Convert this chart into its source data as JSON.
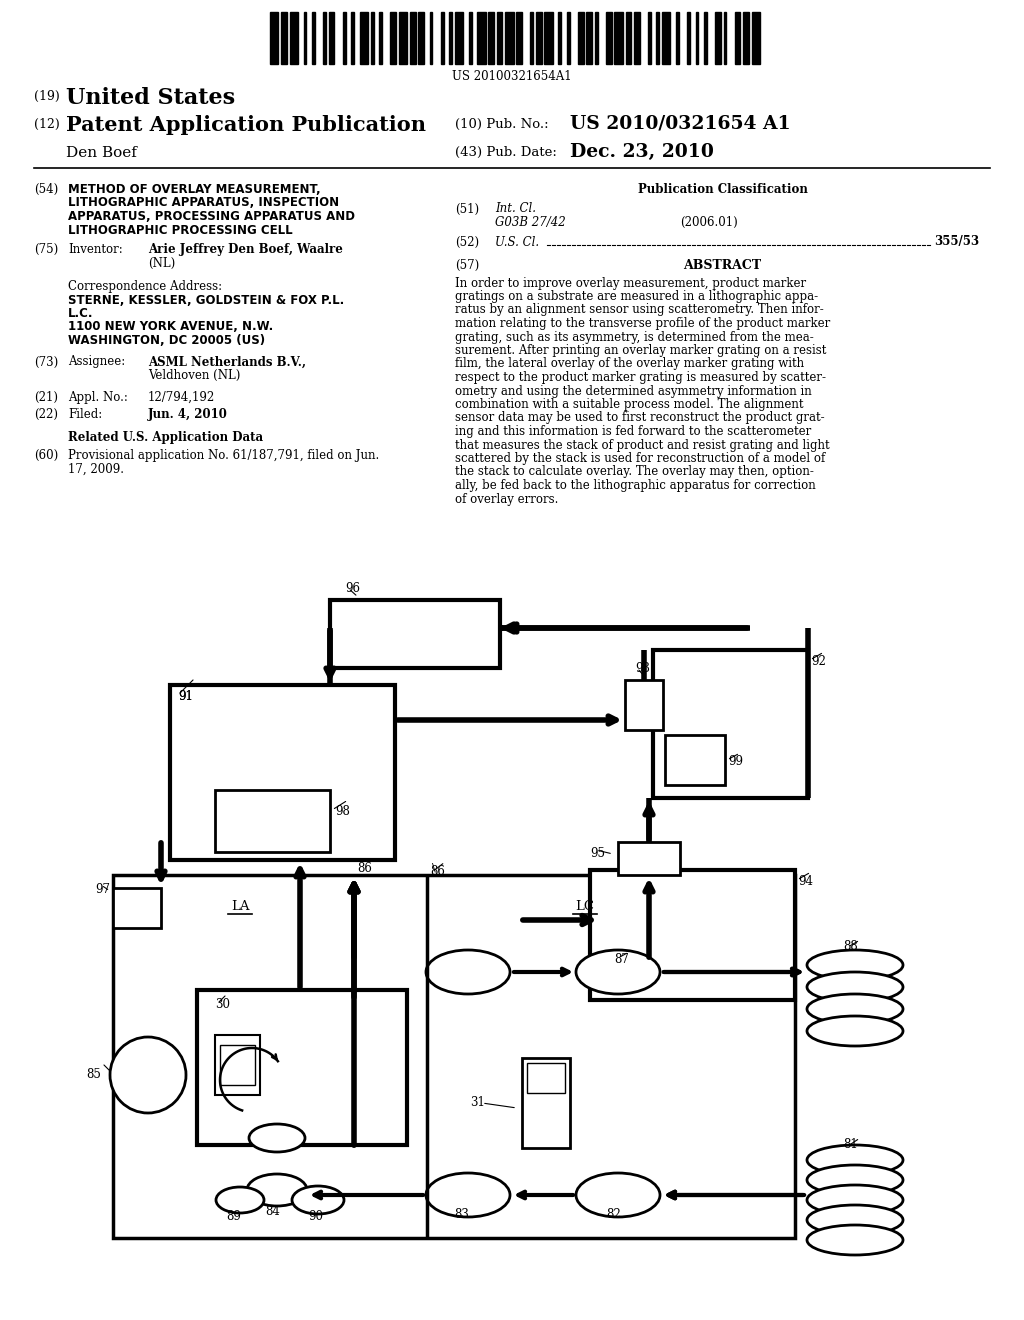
{
  "bg_color": "#ffffff",
  "barcode_text": "US 20100321654A1",
  "header_country_num": "(19)",
  "header_country": "United States",
  "header_pub_num": "(12)",
  "header_pub": "Patent Application Publication",
  "header_right_label1": "(10) Pub. No.:",
  "header_right_val1": "US 2010/0321654 A1",
  "header_inventor": "Den Boef",
  "header_right_label2": "(43) Pub. Date:",
  "header_right_val2": "Dec. 23, 2010",
  "f54_num": "(54)",
  "f54_lines": [
    "METHOD OF OVERLAY MEASUREMENT,",
    "LITHOGRAPHIC APPARATUS, INSPECTION",
    "APPARATUS, PROCESSING APPARATUS AND",
    "LITHOGRAPHIC PROCESSING CELL"
  ],
  "f75_num": "(75)",
  "f75_label": "Inventor:",
  "f75_val1": "Arie Jeffrey Den Boef, Waalre",
  "f75_val2": "(NL)",
  "corr_label": "Correspondence Address:",
  "corr_lines": [
    "STERNE, KESSLER, GOLDSTEIN & FOX P.L.",
    "L.C.",
    "1100 NEW YORK AVENUE, N.W.",
    "WASHINGTON, DC 20005 (US)"
  ],
  "f73_num": "(73)",
  "f73_label": "Assignee:",
  "f73_val1": "ASML Netherlands B.V.,",
  "f73_val2": "Veldhoven (NL)",
  "f21_num": "(21)",
  "f21_label": "Appl. No.:",
  "f21_val": "12/794,192",
  "f22_num": "(22)",
  "f22_label": "Filed:",
  "f22_val": "Jun. 4, 2010",
  "related_title": "Related U.S. Application Data",
  "f60_num": "(60)",
  "f60_lines": [
    "Provisional application No. 61/187,791, filed on Jun.",
    "17, 2009."
  ],
  "pub_class_title": "Publication Classification",
  "f51_num": "(51)",
  "f51_label": "Int. Cl.",
  "f51_class": "G03B 27/42",
  "f51_year": "(2006.01)",
  "f52_num": "(52)",
  "f52_label": "U.S. Cl.",
  "f52_val": "355/53",
  "f57_num": "(57)",
  "f57_title": "ABSTRACT",
  "abstract_lines": [
    "In order to improve overlay measurement, product marker",
    "gratings on a substrate are measured in a lithographic appa-",
    "ratus by an alignment sensor using scatterometry. Then infor-",
    "mation relating to the transverse profile of the product marker",
    "grating, such as its asymmetry, is determined from the mea-",
    "surement. After printing an overlay marker grating on a resist",
    "film, the lateral overlay of the overlay marker grating with",
    "respect to the product marker grating is measured by scatter-",
    "ometry and using the determined asymmetry information in",
    "combination with a suitable process model. The alignment",
    "sensor data may be used to first reconstruct the product grat-",
    "ing and this information is fed forward to the scatterometer",
    "that measures the stack of product and resist grating and light",
    "scattered by the stack is used for reconstruction of a model of",
    "the stack to calculate overlay. The overlay may then, option-",
    "ally, be fed back to the lithographic apparatus for correction",
    "of overlay errors."
  ]
}
